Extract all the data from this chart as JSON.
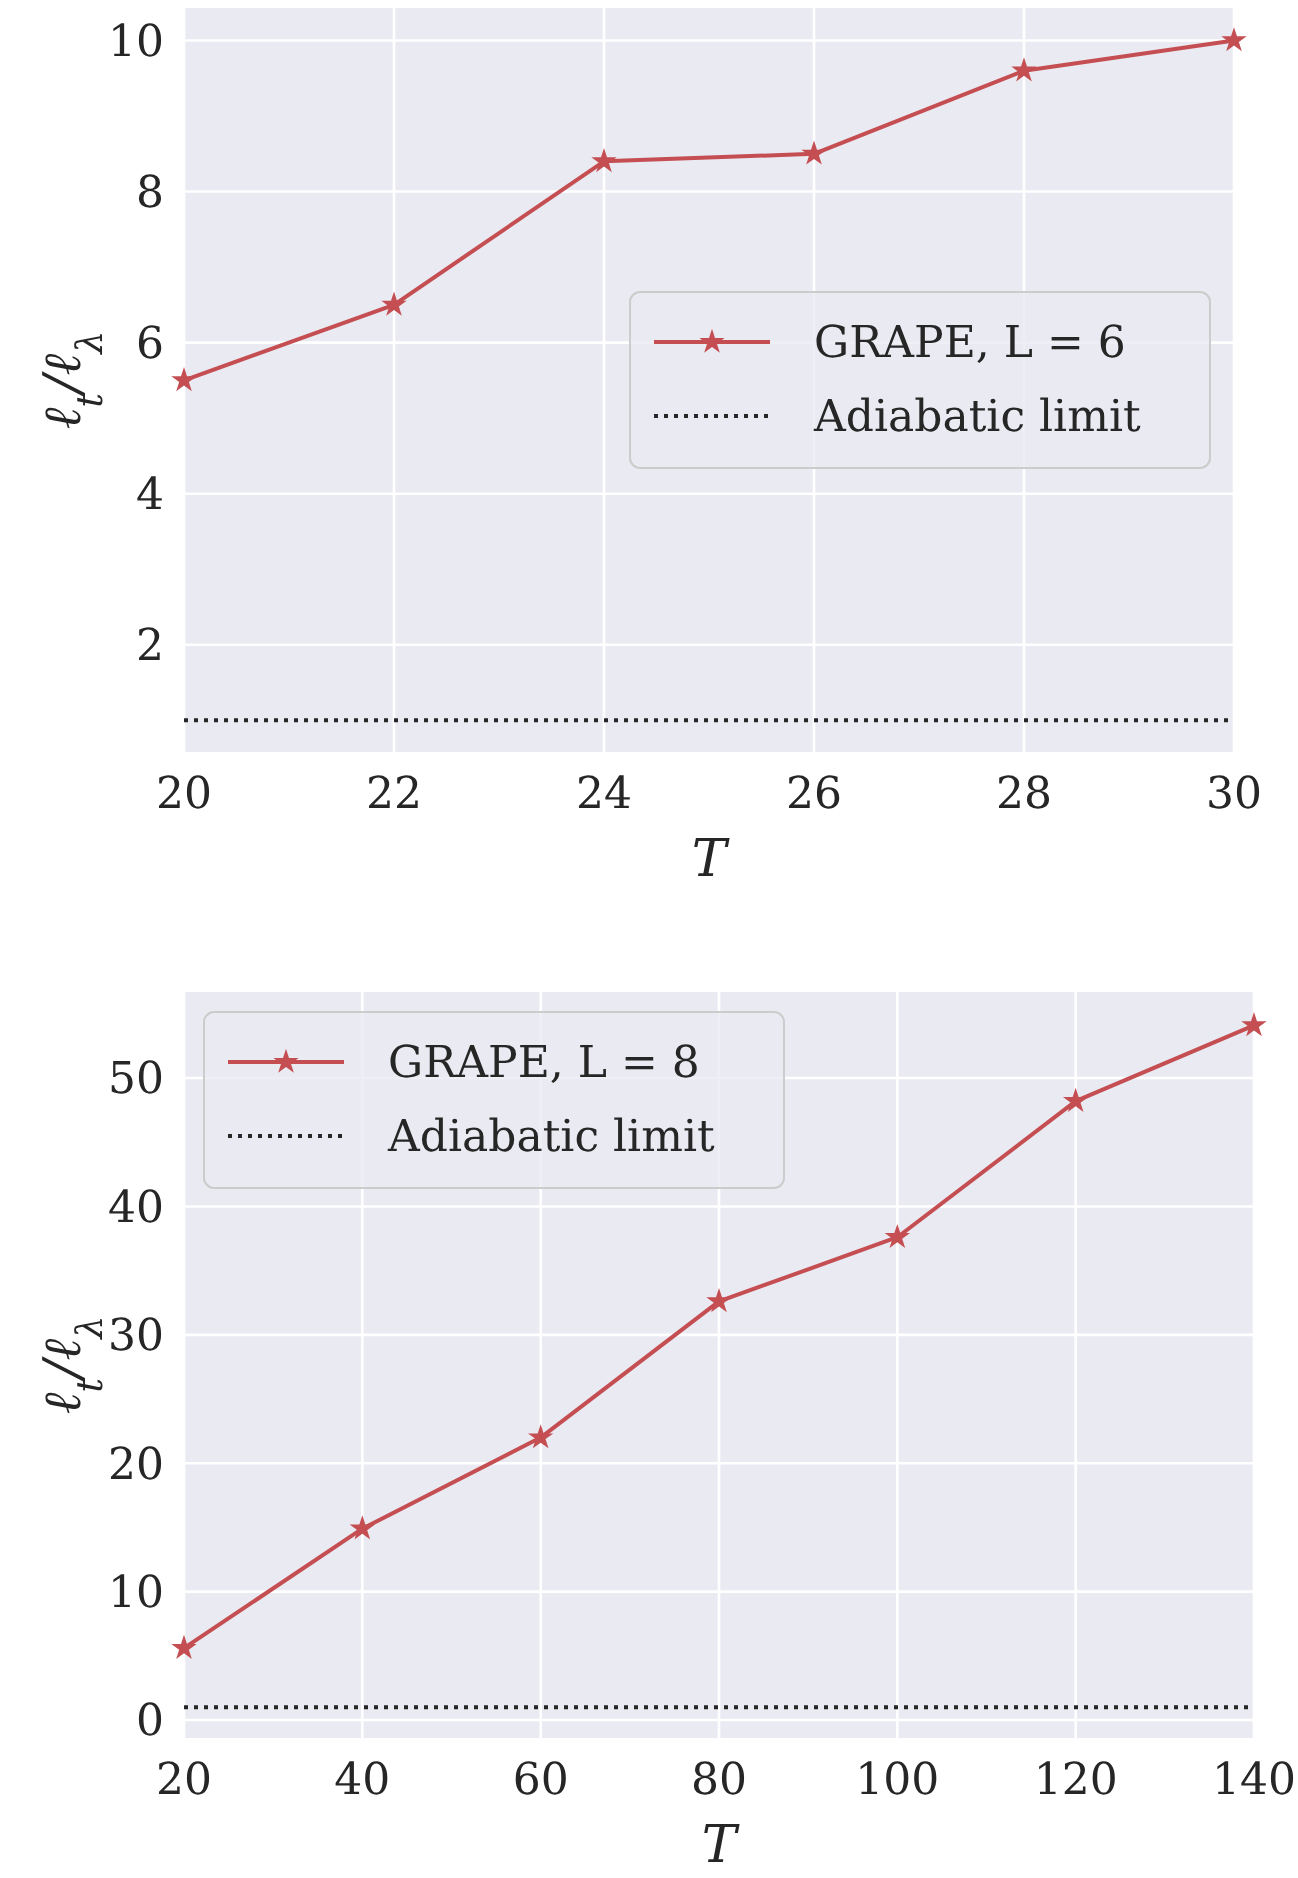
{
  "chart_data": [
    {
      "type": "line",
      "xlabel": "T",
      "ylabel": "ℓ$_{t}$/ℓ$_{λ}$",
      "x": [
        20,
        22,
        24,
        26,
        28,
        30
      ],
      "series": [
        {
          "name": "GRAPE,  L = 6",
          "color": "#c44e52",
          "values": [
            5.5,
            6.5,
            8.4,
            8.5,
            9.6,
            10.0
          ]
        }
      ],
      "ref_lines": [
        {
          "axis": "y",
          "value": 1,
          "label": "Adiabatic limit",
          "color": "#262626",
          "line_style": "dotted"
        }
      ],
      "xlim": [
        20,
        30
      ],
      "xticks": [
        20,
        22,
        24,
        26,
        28,
        30
      ],
      "ylim": [
        0.58,
        10.43
      ],
      "yticks": [
        2,
        4,
        6,
        8,
        10
      ],
      "grid": true,
      "legend": "center right",
      "marker": "star",
      "line_style": "solid"
    },
    {
      "type": "line",
      "xlabel": "T",
      "ylabel": "ℓ$_{t}$/ℓ$_{λ}$",
      "x": [
        20,
        40,
        60,
        80,
        100,
        120,
        140
      ],
      "series": [
        {
          "name": "GRAPE,  L = 8",
          "color": "#c44e52",
          "values": [
            5.6,
            14.9,
            22.0,
            32.6,
            37.6,
            48.2,
            54.1
          ]
        }
      ],
      "ref_lines": [
        {
          "axis": "y",
          "value": 1,
          "label": "Adiabatic limit",
          "color": "#262626",
          "line_style": "dotted"
        }
      ],
      "xlim": [
        20,
        140
      ],
      "xticks": [
        20,
        40,
        60,
        80,
        100,
        120,
        140
      ],
      "ylim": [
        -1.4,
        56.7
      ],
      "yticks": [
        0,
        10,
        20,
        30,
        40,
        50
      ],
      "grid": true,
      "legend": "top left",
      "marker": "star",
      "line_style": "solid"
    }
  ]
}
